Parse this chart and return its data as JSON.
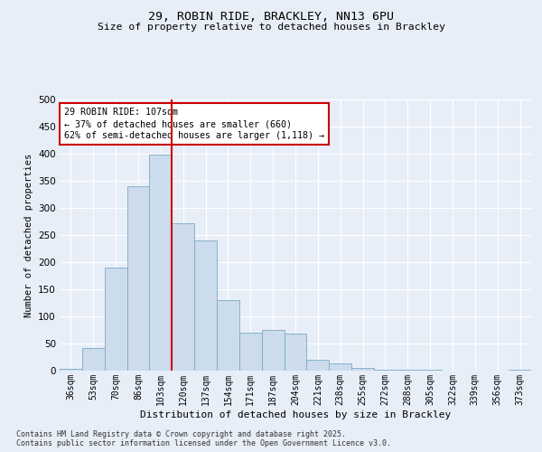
{
  "title_line1": "29, ROBIN RIDE, BRACKLEY, NN13 6PU",
  "title_line2": "Size of property relative to detached houses in Brackley",
  "xlabel": "Distribution of detached houses by size in Brackley",
  "ylabel": "Number of detached properties",
  "bar_color": "#ccdcec",
  "bar_edge_color": "#7aaac8",
  "categories": [
    "36sqm",
    "53sqm",
    "70sqm",
    "86sqm",
    "103sqm",
    "120sqm",
    "137sqm",
    "154sqm",
    "171sqm",
    "187sqm",
    "204sqm",
    "221sqm",
    "238sqm",
    "255sqm",
    "272sqm",
    "288sqm",
    "305sqm",
    "322sqm",
    "339sqm",
    "356sqm",
    "373sqm"
  ],
  "values": [
    3,
    42,
    190,
    340,
    398,
    272,
    240,
    130,
    70,
    75,
    68,
    20,
    13,
    5,
    2,
    1,
    1,
    0,
    0,
    0,
    1
  ],
  "vline_color": "#cc0000",
  "annotation_text": "29 ROBIN RIDE: 107sqm\n← 37% of detached houses are smaller (660)\n62% of semi-detached houses are larger (1,118) →",
  "annotation_box_color": "#ffffff",
  "annotation_box_edge": "#cc0000",
  "footnote1": "Contains HM Land Registry data © Crown copyright and database right 2025.",
  "footnote2": "Contains public sector information licensed under the Open Government Licence v3.0.",
  "ylim": [
    0,
    500
  ],
  "yticks": [
    0,
    50,
    100,
    150,
    200,
    250,
    300,
    350,
    400,
    450,
    500
  ],
  "background_color": "#e8eef8",
  "grid_color": "#ffffff"
}
